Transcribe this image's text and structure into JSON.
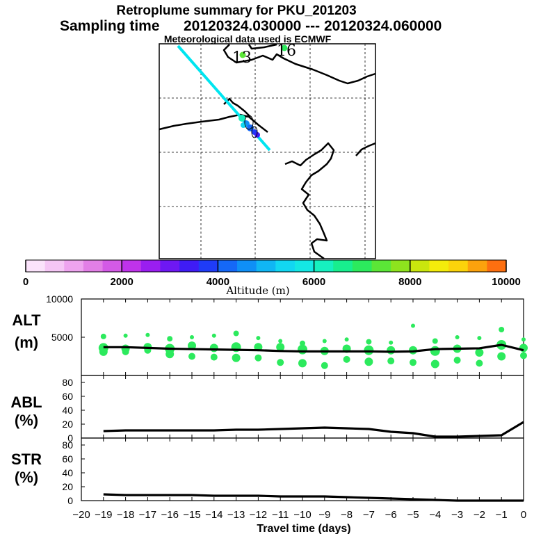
{
  "header": {
    "title": "Retroplume summary for PKU_201203",
    "sampling_label": "Sampling time",
    "sampling_range": "20120324.030000 --- 20120324.060000",
    "met_note": "Meteorological data used is ECMWF"
  },
  "map": {
    "labels": [
      "13",
      "16"
    ],
    "plume_color": "#00e5f0"
  },
  "colorbar": {
    "min": 0,
    "max": 10000,
    "step": 400,
    "tick_values": [
      0,
      2000,
      4000,
      6000,
      8000,
      10000
    ],
    "tick_labels": [
      "0",
      "2000",
      "4000",
      "6000",
      "8000",
      "10000"
    ],
    "label": "Altitude (m)",
    "colors": [
      "#fbe3fb",
      "#f5c6f5",
      "#eea4ef",
      "#e27fe6",
      "#d35ae6",
      "#bf33ea",
      "#9a1ef0",
      "#6e18f3",
      "#3f1cf5",
      "#1f3cf7",
      "#1568f6",
      "#0f8ff6",
      "#10b6f4",
      "#12d7f2",
      "#14e8e4",
      "#16f0bf",
      "#18ee8e",
      "#2cea5d",
      "#5be637",
      "#8ee31e",
      "#c9e60e",
      "#f4ec0b",
      "#fbd30b",
      "#fca20d",
      "#fd6f10"
    ]
  },
  "chart_data": [
    {
      "type": "line",
      "panel": "ALT",
      "ylabel_lines": [
        "ALT",
        "(m)"
      ],
      "ylim": [
        0,
        10000
      ],
      "yticks": [
        5000,
        10000
      ],
      "ytick_labels": [
        "5000",
        "10000"
      ],
      "x": [
        -19,
        -18,
        -17,
        -16,
        -15,
        -14,
        -13,
        -12,
        -11,
        -10,
        -9,
        -8,
        -7,
        -6,
        -5,
        -4,
        -3,
        -2,
        -1,
        0
      ],
      "series": [
        {
          "name": "mean altitude",
          "values": [
            3700,
            3700,
            3600,
            3500,
            3450,
            3400,
            3350,
            3300,
            3200,
            3150,
            3150,
            3150,
            3150,
            3100,
            3150,
            3450,
            3500,
            3550,
            4000,
            3300
          ]
        }
      ],
      "spread_series": {
        "name": "altitude spread",
        "points": [
          {
            "x": -19,
            "y": [
              5100,
              3600,
              3100
            ]
          },
          {
            "x": -18,
            "y": [
              5200,
              3500,
              3100
            ]
          },
          {
            "x": -17,
            "y": [
              5300,
              3700,
              3300
            ]
          },
          {
            "x": -16,
            "y": [
              4800,
              3500,
              2800
            ]
          },
          {
            "x": -15,
            "y": [
              5000,
              3900,
              2500
            ]
          },
          {
            "x": -14,
            "y": [
              5200,
              3600,
              2400
            ]
          },
          {
            "x": -13,
            "y": [
              5500,
              3700,
              2300
            ]
          },
          {
            "x": -12,
            "y": [
              4900,
              3700,
              2300
            ]
          },
          {
            "x": -11,
            "y": [
              4500,
              3700,
              1700
            ]
          },
          {
            "x": -10,
            "y": [
              4200,
              3400,
              1600
            ]
          },
          {
            "x": -9,
            "y": [
              4500,
              3200,
              1300
            ]
          },
          {
            "x": -8,
            "y": [
              4700,
              3500,
              2100
            ]
          },
          {
            "x": -7,
            "y": [
              4400,
              3300,
              1800
            ]
          },
          {
            "x": -6,
            "y": [
              4300,
              3300,
              1900
            ]
          },
          {
            "x": -5,
            "y": [
              6500,
              3300,
              1700
            ]
          },
          {
            "x": -4,
            "y": [
              4500,
              3200,
              1500
            ]
          },
          {
            "x": -3,
            "y": [
              5000,
              3500,
              2000
            ]
          },
          {
            "x": -2,
            "y": [
              4900,
              3000,
              1600
            ]
          },
          {
            "x": -1,
            "y": [
              6000,
              4000,
              2500
            ]
          },
          {
            "x": 0,
            "y": [
              4700,
              3600,
              2600
            ]
          }
        ]
      }
    },
    {
      "type": "line",
      "panel": "ABL",
      "ylabel_lines": [
        "ABL",
        "(%)"
      ],
      "ylim": [
        0,
        90
      ],
      "yticks": [
        0,
        20,
        40,
        60,
        80
      ],
      "ytick_labels": [
        "0",
        "20",
        "40",
        "60",
        "80"
      ],
      "x": [
        -19,
        -18,
        -17,
        -16,
        -15,
        -14,
        -13,
        -12,
        -11,
        -10,
        -9,
        -8,
        -7,
        -6,
        -5,
        -4,
        -3,
        -2,
        -1,
        0
      ],
      "series": [
        {
          "name": "ABL fraction",
          "values": [
            10,
            11,
            11,
            11,
            11,
            11,
            12,
            12,
            13,
            14,
            15,
            14,
            13,
            9,
            7,
            2,
            2,
            3,
            4,
            23
          ]
        }
      ]
    },
    {
      "type": "line",
      "panel": "STR",
      "ylabel_lines": [
        "STR",
        "(%)"
      ],
      "ylim": [
        0,
        90
      ],
      "yticks": [
        0,
        20,
        40,
        60,
        80
      ],
      "ytick_labels": [
        "0",
        "20",
        "40",
        "60",
        "80"
      ],
      "x": [
        -19,
        -18,
        -17,
        -16,
        -15,
        -14,
        -13,
        -12,
        -11,
        -10,
        -9,
        -8,
        -7,
        -6,
        -5,
        -4,
        -3,
        -2,
        -1,
        0
      ],
      "series": [
        {
          "name": "stratospheric fraction",
          "values": [
            9,
            8,
            8,
            8,
            8,
            7,
            7,
            7,
            6,
            6,
            6,
            5,
            4,
            3,
            2,
            1,
            0,
            0,
            0,
            0
          ]
        }
      ]
    }
  ],
  "xaxis": {
    "label": "Travel time (days)",
    "ticks": [
      -20,
      -19,
      -18,
      -17,
      -16,
      -15,
      -14,
      -13,
      -12,
      -11,
      -10,
      -9,
      -8,
      -7,
      -6,
      -5,
      -4,
      -3,
      -2,
      -1,
      0
    ],
    "tick_labels": [
      "−20",
      "−19",
      "−18",
      "−17",
      "−16",
      "−15",
      "−14",
      "−13",
      "−12",
      "−11",
      "−10",
      "−9",
      "−8",
      "−7",
      "−6",
      "−5",
      "−4",
      "−3",
      "−2",
      "−1",
      "0"
    ],
    "xlim": [
      -20,
      0
    ]
  }
}
